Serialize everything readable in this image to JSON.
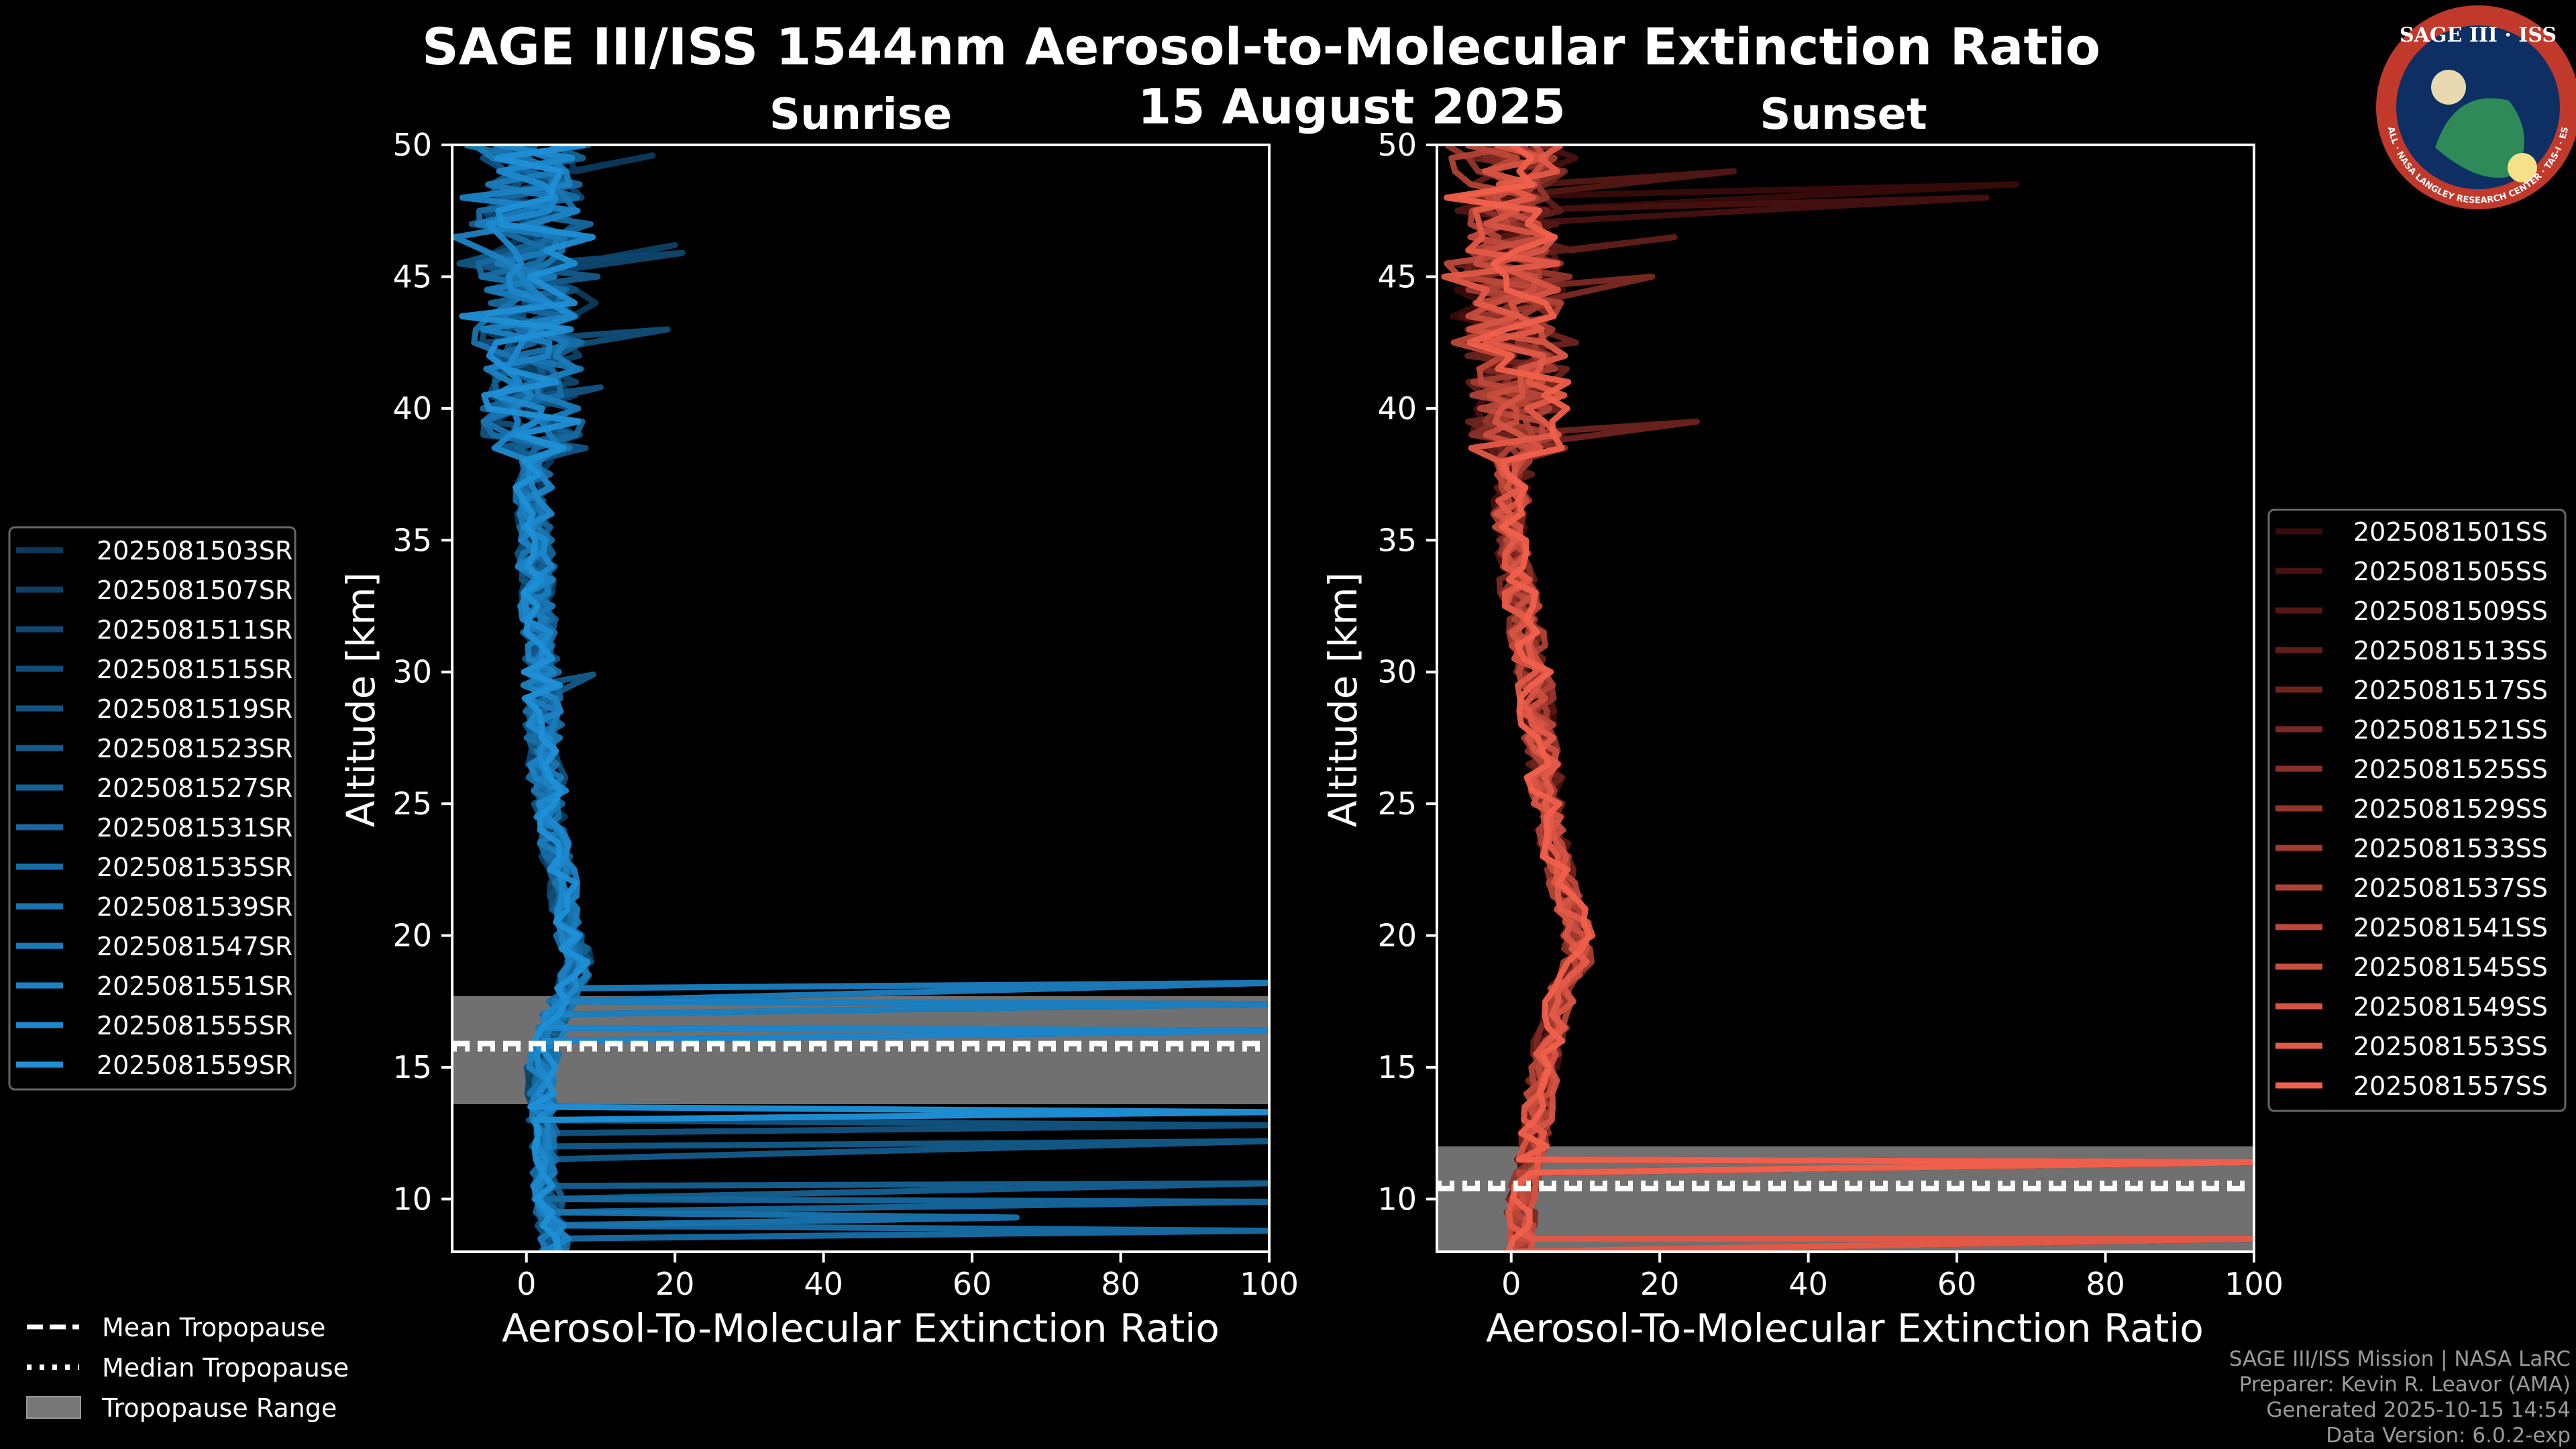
{
  "title": "SAGE III/ISS 1544nm Aerosol-to-Molecular Extinction Ratio",
  "date": "15 August 2025",
  "logo": {
    "top": "SAGE III · ISS",
    "ring": "BALL · NASA LANGLEY RESEARCH CENTER · TAS-I · ESA",
    "colors": {
      "bg": "#0d2f63",
      "ring": "#c0392b"
    }
  },
  "footer": {
    "line1": "SAGE III/ISS Mission | NASA LaRC",
    "line2": "Preparer: Kevin R. Leavor (AMA)",
    "line3": "Generated 2025-10-15 14:54",
    "line4": "Data Version: 6.0.2-exp"
  },
  "tropo_legend": {
    "mean": "Mean Tropopause",
    "median": "Median Tropopause",
    "range": "Tropopause Range"
  },
  "chart_data": [
    {
      "type": "line",
      "subtitle": "Sunrise",
      "xlabel": "Aerosol-To-Molecular Extinction Ratio",
      "ylabel": "Altitude [km]",
      "xlim": [
        -10,
        100
      ],
      "ylim": [
        8,
        50
      ],
      "xticks": [
        0,
        20,
        40,
        60,
        80,
        100
      ],
      "yticks": [
        10,
        15,
        20,
        25,
        30,
        35,
        40,
        45,
        50
      ],
      "legend_position": "left",
      "color_dark": "#0b3a5c",
      "color_light": "#1f8fd6",
      "series_names": [
        "2025081503SR",
        "2025081507SR",
        "2025081511SR",
        "2025081515SR",
        "2025081519SR",
        "2025081523SR",
        "2025081527SR",
        "2025081531SR",
        "2025081535SR",
        "2025081539SR",
        "2025081547SR",
        "2025081551SR",
        "2025081555SR",
        "2025081559SR"
      ],
      "tropopause": {
        "mean": 15.9,
        "median": 15.7,
        "range": [
          13.6,
          17.7
        ]
      },
      "base_profile": [
        [
          8,
          4
        ],
        [
          10,
          3
        ],
        [
          12,
          2.5
        ],
        [
          14,
          2
        ],
        [
          15,
          2
        ],
        [
          16,
          3
        ],
        [
          17,
          4
        ],
        [
          18,
          6
        ],
        [
          19,
          7
        ],
        [
          20,
          6
        ],
        [
          21,
          5
        ],
        [
          22,
          5
        ],
        [
          23,
          4
        ],
        [
          25,
          3
        ],
        [
          27,
          2.5
        ],
        [
          30,
          2
        ],
        [
          33,
          1.5
        ],
        [
          36,
          1
        ],
        [
          40,
          1
        ],
        [
          45,
          0
        ],
        [
          50,
          0
        ]
      ],
      "spikes": [
        {
          "alt": 18.2,
          "x": 100
        },
        {
          "alt": 17.4,
          "x": 100
        },
        {
          "alt": 16.4,
          "x": 100
        },
        {
          "alt": 13.3,
          "x": 100
        },
        {
          "alt": 12.8,
          "x": 100
        },
        {
          "alt": 12.2,
          "x": 100
        },
        {
          "alt": 10.6,
          "x": 100
        },
        {
          "alt": 9.9,
          "x": 100
        },
        {
          "alt": 8.8,
          "x": 100
        },
        {
          "alt": 9.3,
          "x": 66
        }
      ],
      "upper_spikes": [
        {
          "alt": 49.6,
          "x": 17
        },
        {
          "alt": 46.2,
          "x": 20
        },
        {
          "alt": 45.9,
          "x": 21
        },
        {
          "alt": 43.0,
          "x": 19
        },
        {
          "alt": 40.8,
          "x": 10
        },
        {
          "alt": 29.9,
          "x": 9
        }
      ]
    },
    {
      "type": "line",
      "subtitle": "Sunset",
      "xlabel": "Aerosol-To-Molecular Extinction Ratio",
      "ylabel": "Altitude [km]",
      "xlim": [
        -10,
        100
      ],
      "ylim": [
        8,
        50
      ],
      "xticks": [
        0,
        20,
        40,
        60,
        80,
        100
      ],
      "yticks": [
        10,
        15,
        20,
        25,
        30,
        35,
        40,
        45,
        50
      ],
      "legend_position": "right",
      "color_dark": "#3a0b0b",
      "color_light": "#f0604c",
      "series_names": [
        "2025081501SS",
        "2025081505SS",
        "2025081509SS",
        "2025081513SS",
        "2025081517SS",
        "2025081521SS",
        "2025081525SS",
        "2025081529SS",
        "2025081533SS",
        "2025081537SS",
        "2025081541SS",
        "2025081545SS",
        "2025081549SS",
        "2025081553SS",
        "2025081557SS"
      ],
      "tropopause": {
        "mean": 10.4,
        "median": 10.6,
        "range": [
          8,
          12
        ]
      },
      "base_profile": [
        [
          8,
          1
        ],
        [
          10,
          1.5
        ],
        [
          12,
          3
        ],
        [
          14,
          4
        ],
        [
          16,
          5
        ],
        [
          18,
          7
        ],
        [
          19,
          9
        ],
        [
          20,
          9
        ],
        [
          21,
          8
        ],
        [
          22,
          7
        ],
        [
          23,
          6
        ],
        [
          25,
          5
        ],
        [
          27,
          4
        ],
        [
          30,
          3
        ],
        [
          33,
          1
        ],
        [
          36,
          0
        ],
        [
          40,
          1
        ],
        [
          45,
          0
        ],
        [
          50,
          0
        ]
      ],
      "spikes": [
        {
          "alt": 11.4,
          "x": 100
        },
        {
          "alt": 8.5,
          "x": 100
        }
      ],
      "upper_spikes": [
        {
          "alt": 48.5,
          "x": 68
        },
        {
          "alt": 48.0,
          "x": 64
        },
        {
          "alt": 49.0,
          "x": 30
        },
        {
          "alt": 46.5,
          "x": 22
        },
        {
          "alt": 39.5,
          "x": 25
        },
        {
          "alt": 45.0,
          "x": 19
        }
      ]
    }
  ]
}
